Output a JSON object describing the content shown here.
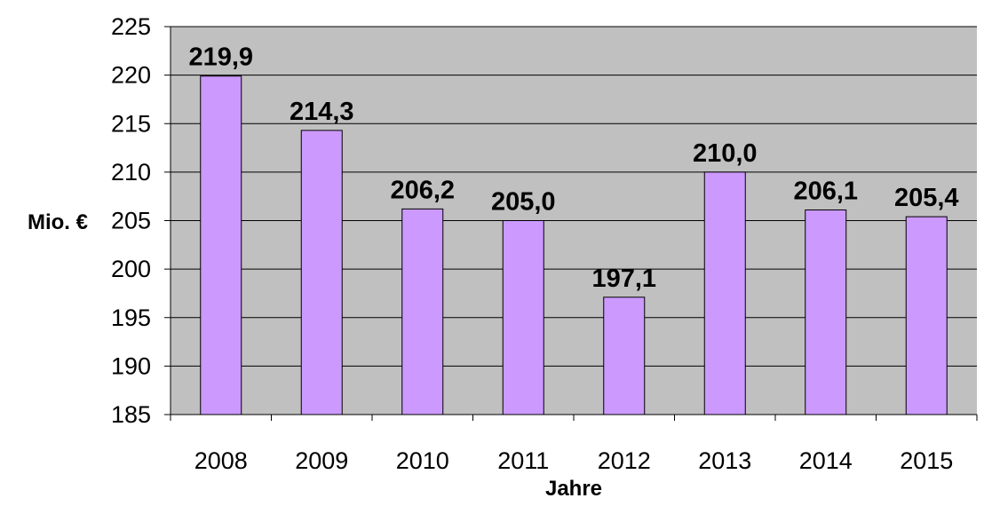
{
  "chart_data": {
    "type": "bar",
    "categories": [
      "2008",
      "2009",
      "2010",
      "2011",
      "2012",
      "2013",
      "2014",
      "2015"
    ],
    "values": [
      219.9,
      214.3,
      206.2,
      205.0,
      197.1,
      210.0,
      206.1,
      205.4
    ],
    "data_labels": [
      "219,9",
      "214,3",
      "206,2",
      "205,0",
      "197,1",
      "210,0",
      "206,1",
      "205,4"
    ],
    "title": "",
    "xlabel": "Jahre",
    "ylabel": "Mio. €",
    "ylim": [
      185,
      225
    ],
    "yticks": [
      185,
      190,
      195,
      200,
      205,
      210,
      215,
      220,
      225
    ],
    "grid": true,
    "colors": {
      "bar_fill": "#cc99ff",
      "bar_stroke": "#000000",
      "plot_background": "#c0c0c0",
      "gridline": "#000000"
    }
  }
}
